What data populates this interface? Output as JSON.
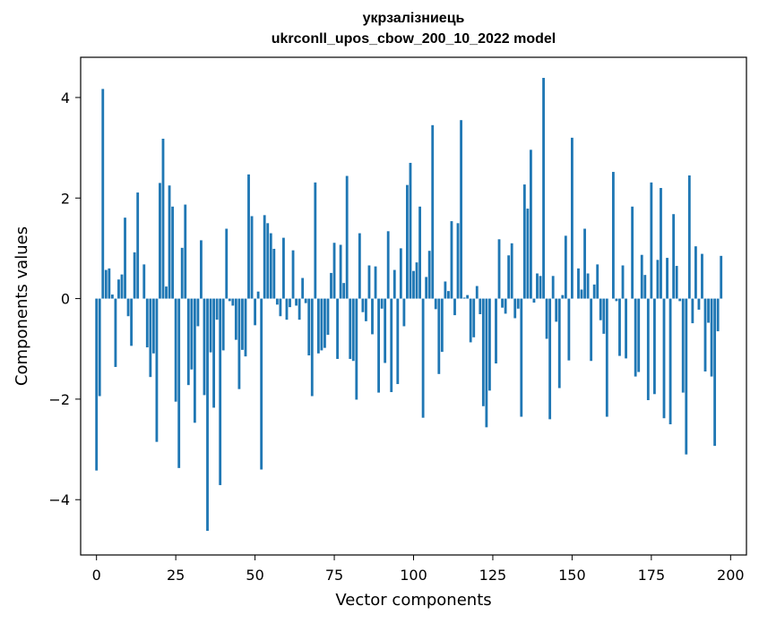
{
  "chart_data": {
    "type": "bar",
    "title": "укрзалізниець",
    "subtitle": "ukrconll_upos_cbow_200_10_2022 model",
    "xlabel": "Vector components",
    "ylabel": "Components values",
    "xlim": [
      -5,
      205
    ],
    "ylim": [
      -5.1,
      4.8
    ],
    "xticks": [
      0,
      25,
      50,
      75,
      100,
      125,
      150,
      175,
      200
    ],
    "yticks": [
      -4,
      -2,
      0,
      2,
      4
    ],
    "ytick_labels": [
      "−4",
      "−2",
      "0",
      "2",
      "4"
    ],
    "grid": false,
    "bar_color": "#1f77b4",
    "values": [
      -3.42,
      -1.94,
      4.17,
      0.57,
      0.6,
      0.08,
      -1.36,
      0.38,
      0.48,
      1.61,
      -0.35,
      -0.94,
      0.92,
      2.11,
      0.0,
      0.68,
      -0.97,
      -1.56,
      -1.09,
      -2.85,
      2.3,
      3.18,
      0.24,
      2.25,
      1.83,
      -2.05,
      -3.37,
      1.01,
      1.87,
      -1.72,
      -1.41,
      -2.47,
      -0.55,
      1.16,
      -1.92,
      -4.62,
      -1.07,
      -2.17,
      -0.42,
      -3.71,
      -1.03,
      1.39,
      -0.05,
      -0.14,
      -0.82,
      -1.8,
      -1.02,
      -1.15,
      2.47,
      1.64,
      -0.53,
      0.14,
      -3.4,
      1.66,
      1.5,
      1.3,
      0.99,
      -0.12,
      -0.35,
      1.21,
      -0.42,
      -0.17,
      0.96,
      -0.14,
      -0.42,
      0.41,
      -0.09,
      -1.13,
      -1.94,
      2.31,
      -1.09,
      -1.03,
      -0.98,
      -0.72,
      0.51,
      1.11,
      -1.2,
      1.07,
      0.31,
      2.44,
      -1.2,
      -1.24,
      -2.01,
      1.3,
      -0.27,
      -0.45,
      0.66,
      -0.71,
      0.64,
      -1.87,
      -0.2,
      -1.28,
      1.34,
      -1.86,
      0.57,
      -1.7,
      1.0,
      -0.55,
      2.26,
      2.7,
      0.55,
      0.72,
      1.83,
      -2.37,
      0.43,
      0.95,
      3.45,
      -0.21,
      -1.5,
      -1.06,
      0.34,
      0.15,
      1.54,
      -0.33,
      1.5,
      3.55,
      0.02,
      0.07,
      -0.87,
      -0.77,
      0.25,
      -0.31,
      -2.14,
      -2.56,
      -1.83,
      0.0,
      -1.29,
      1.18,
      -0.18,
      -0.3,
      0.86,
      1.1,
      -0.39,
      -0.2,
      -2.35,
      2.27,
      1.79,
      2.96,
      -0.08,
      0.5,
      0.45,
      4.39,
      -0.8,
      -2.4,
      0.45,
      -0.46,
      -1.78,
      0.07,
      1.25,
      -1.23,
      3.2,
      0.0,
      0.6,
      0.18,
      1.39,
      0.5,
      -1.24,
      0.28,
      0.68,
      -0.43,
      -0.7,
      -2.35,
      0.0,
      2.52,
      -0.05,
      -1.14,
      0.66,
      -1.19,
      0.0,
      1.83,
      -1.55,
      -1.46,
      0.87,
      0.47,
      -2.02,
      2.31,
      -1.9,
      0.77,
      2.2,
      -2.38,
      0.81,
      -2.5,
      1.68,
      0.65,
      -0.05,
      -1.87,
      -3.1,
      2.45,
      -0.49,
      1.04,
      -0.22,
      0.89,
      -1.45,
      -0.48,
      -1.55,
      -2.93,
      -0.65,
      0.85
    ]
  }
}
